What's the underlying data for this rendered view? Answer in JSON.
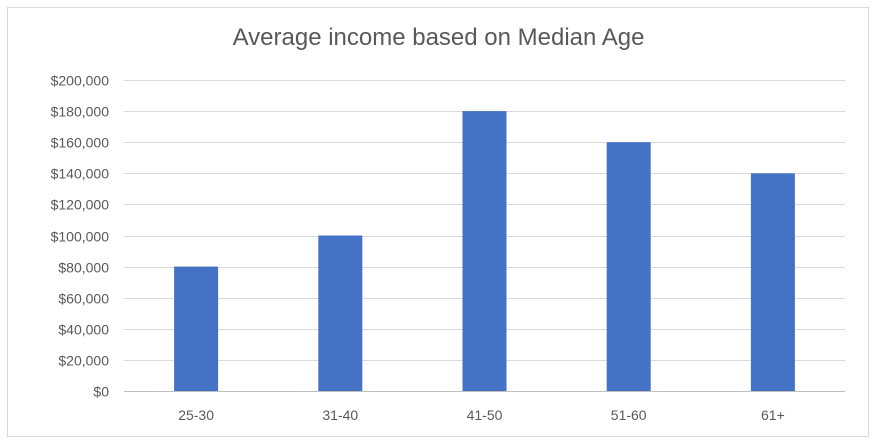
{
  "chart_data": {
    "type": "bar",
    "title": "Average income based on Median Age",
    "categories": [
      "25-30",
      "31-40",
      "41-50",
      "51-60",
      "61+"
    ],
    "values": [
      80000,
      100000,
      180000,
      160000,
      140000
    ],
    "ylim": [
      0,
      200000
    ],
    "y_ticks": [
      "$0",
      "$20,000",
      "$40,000",
      "$60,000",
      "$80,000",
      "$100,000",
      "$120,000",
      "$140,000",
      "$160,000",
      "$180,000",
      "$200,000"
    ],
    "y_tick_values": [
      0,
      20000,
      40000,
      60000,
      80000,
      100000,
      120000,
      140000,
      160000,
      180000,
      200000
    ],
    "grid": true,
    "legend": "none",
    "bar_color": "#4472c4",
    "grid_color": "#d9d9d9",
    "text_color": "#595959"
  }
}
